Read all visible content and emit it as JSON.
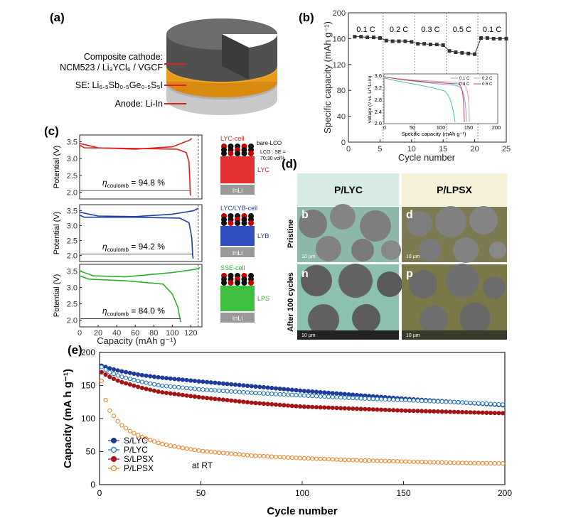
{
  "panels": {
    "a": {
      "label": "(a)",
      "cathode_line1": "Composite cathode:",
      "cathode_line2": "NCM523 / Li₃YCl₆ / VGCF",
      "se": "SE: Li₆.₅Sb₀.₅Ge₀.₅S₅I",
      "anode": "Anode: Li-In"
    },
    "b": {
      "label": "(b)",
      "colors": {
        "main": "#333333",
        "c01": "#8aa0d8",
        "c02": "#d89ab0",
        "c03": "#4cc4a0",
        "c05": "#c04060"
      },
      "inset": {
        "ylabel": "Voltage (V vs. Li⁺/Li-In)",
        "xlabel": "Specific capacity (mAh g⁻¹)",
        "yticks": [
          "2.0",
          "2.4",
          "2.8",
          "3.2",
          "3.6"
        ],
        "xticks": [
          "0",
          "50",
          "100",
          "150",
          "200"
        ],
        "legend": [
          "0.1 C",
          "0.3 C",
          "0.2 C",
          "0.5 C"
        ]
      }
    },
    "c": {
      "label": "(c)",
      "cells": [
        {
          "name": "LYC-cell",
          "color": "#e02020",
          "eta": "94.8 %",
          "layer": "LYC",
          "extra1": "bare-LCO",
          "extra2": "LCO : SE =",
          "extra3": "70:30 vol%"
        },
        {
          "name": "LYC/LYB-cell",
          "color": "#2040a0",
          "eta": "94.2 %",
          "layer": "LYB"
        },
        {
          "name": "SSE-cell",
          "color": "#30b030",
          "eta": "84.0 %",
          "layer": "LPS"
        }
      ],
      "inli": "InLi",
      "eta_symbol": "η",
      "eta_sub": "coulomb",
      "ylabel": "Potential (V)",
      "xlabel": "Capacity (mAh g⁻¹)",
      "yticks": [
        "2.0",
        "2.5",
        "3.0",
        "3.5"
      ],
      "xticks": [
        "0",
        "20",
        "40",
        "60",
        "80",
        "100",
        "120"
      ]
    },
    "d": {
      "label": "(d)",
      "col1": "P/LYC",
      "col2": "P/LPSX",
      "row1": "Pristine",
      "row2": "After 100 cycles",
      "tiles": [
        "b",
        "d",
        "n",
        "p"
      ],
      "scale": "10 µm"
    },
    "e": {
      "label": "(e)",
      "annotation": "at RT"
    }
  },
  "chart_data": [
    {
      "id": "b",
      "type": "line",
      "xlabel": "Cycle number",
      "ylabel": "Specific capacity (mAh g⁻¹)",
      "xlim": [
        0,
        25
      ],
      "ylim": [
        0,
        200
      ],
      "xticks": [
        0,
        5,
        10,
        15,
        20,
        25
      ],
      "yticks": [
        0,
        40,
        80,
        120,
        160,
        200
      ],
      "rate_labels": [
        "0.1 C",
        "0.2 C",
        "0.3 C",
        "0.5 C",
        "0.1 C"
      ],
      "rate_boundaries": [
        5.5,
        10.5,
        15.5,
        20.5
      ],
      "series": [
        {
          "x": [
            1,
            2,
            3,
            4,
            5,
            6,
            7,
            8,
            9,
            10,
            11,
            12,
            13,
            14,
            15,
            16,
            17,
            18,
            19,
            20,
            21,
            22,
            23,
            24,
            25
          ],
          "values": [
            163,
            163,
            162,
            162,
            161,
            157,
            156,
            156,
            156,
            155,
            152,
            152,
            151,
            151,
            150,
            141,
            139,
            138,
            137,
            136,
            161,
            161,
            160,
            160,
            160
          ]
        }
      ]
    },
    {
      "id": "e",
      "type": "scatter",
      "xlabel": "Cycle number",
      "ylabel": "Capacity (mA h g⁻¹)",
      "xlim": [
        0,
        200
      ],
      "ylim": [
        0,
        200
      ],
      "xticks": [
        0,
        50,
        100,
        150,
        200
      ],
      "yticks": [
        0,
        50,
        100,
        150,
        200
      ],
      "legend": "bottom-left",
      "series": [
        {
          "name": "S/LYC",
          "color": "#1f3b9a",
          "filled": true,
          "x": [
            1,
            5,
            10,
            20,
            30,
            50,
            75,
            100,
            125,
            150,
            175,
            200
          ],
          "values": [
            180,
            176,
            172,
            166,
            162,
            156,
            149,
            142,
            136,
            130,
            125,
            120
          ]
        },
        {
          "name": "P/LYC",
          "color": "#1e6fb8",
          "filled": false,
          "x": [
            1,
            5,
            10,
            20,
            30,
            50,
            75,
            100,
            125,
            150,
            175,
            200
          ],
          "values": [
            178,
            170,
            164,
            156,
            150,
            144,
            139,
            135,
            131,
            128,
            125,
            121
          ]
        },
        {
          "name": "S/LPSX",
          "color": "#a31515",
          "filled": true,
          "x": [
            1,
            5,
            10,
            20,
            30,
            50,
            75,
            100,
            125,
            150,
            175,
            200
          ],
          "values": [
            170,
            163,
            156,
            147,
            140,
            132,
            124,
            118,
            115,
            112,
            110,
            108
          ]
        },
        {
          "name": "P/LPSX",
          "color": "#ee7d1f",
          "filled": false,
          "x": [
            1,
            3,
            5,
            10,
            15,
            20,
            30,
            40,
            50,
            75,
            100,
            125,
            150,
            175,
            200
          ],
          "values": [
            157,
            128,
            112,
            92,
            81,
            73,
            62,
            56,
            51,
            44,
            40,
            37,
            35,
            33,
            32
          ]
        }
      ]
    }
  ]
}
